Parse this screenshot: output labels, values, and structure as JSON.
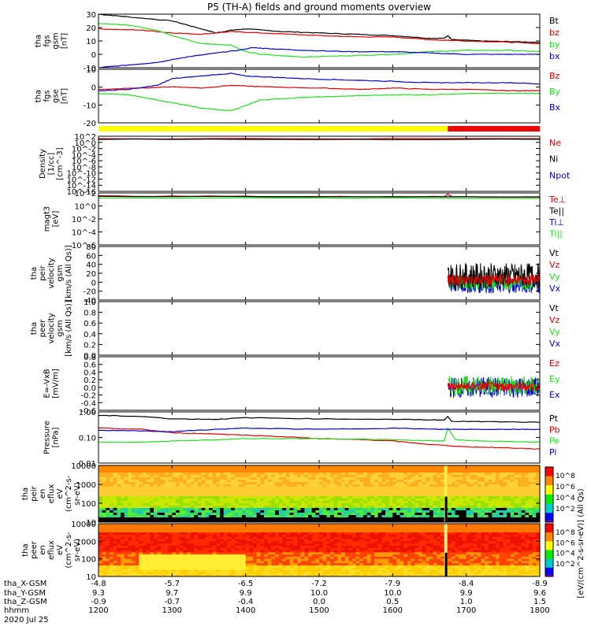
{
  "title": "P5 (TH-A) fields and ground moments overview",
  "colors": {
    "black": "#000000",
    "red": "#e00000",
    "green": "#22dd22",
    "blue": "#0000cc",
    "yellow": "#ffff00",
    "barred": "#ee0000"
  },
  "chart_data": {
    "type": "line",
    "time_axis": {
      "rows": [
        {
          "label": "tha_X-GSM",
          "values": [
            "-4.8",
            "-5.7",
            "-6.5",
            "-7.2",
            "-7.9",
            "-8.4",
            "-8.9"
          ]
        },
        {
          "label": "tha_Y-GSM",
          "values": [
            "9.3",
            "9.7",
            "9.9",
            "10.0",
            "10.0",
            "9.9",
            "9.6"
          ]
        },
        {
          "label": "tha_Z-GSM",
          "values": [
            "-0.9",
            "-0.7",
            "-0.4",
            "0.0",
            "0.5",
            "1.0",
            "1.5"
          ]
        },
        {
          "label": "hhmm",
          "values": [
            "1200",
            "1300",
            "1400",
            "1500",
            "1600",
            "1700",
            "1800"
          ]
        }
      ],
      "date": "2020 Jul 25",
      "range": [
        1200,
        1800
      ]
    },
    "panels": [
      {
        "id": "fgs",
        "ylabel": [
          "tha",
          "fgs",
          "gsm",
          "[nT]"
        ],
        "yticks": [
          "30",
          "20",
          "10",
          "0",
          "-10"
        ],
        "ylim": [
          -10,
          30
        ],
        "legend": [
          {
            "name": "Bt",
            "color": "black"
          },
          {
            "name": "bz",
            "color": "red"
          },
          {
            "name": "by",
            "color": "green"
          },
          {
            "name": "bx",
            "color": "blue"
          }
        ],
        "series": [
          {
            "name": "Bt",
            "color": "black",
            "t": [
              1200,
              1240,
              1300,
              1340,
              1360,
              1380,
              1400,
              1450,
              1500,
              1550,
              1600,
              1650,
              1670,
              1675,
              1680,
              1720,
              1760,
              1800
            ],
            "y": [
              30,
              28,
              25,
              19,
              16,
              18,
              19,
              17,
              16,
              15,
              14,
              12,
              12,
              14,
              11,
              10,
              9.5,
              9
            ]
          },
          {
            "name": "bz",
            "color": "red",
            "t": [
              1200,
              1260,
              1300,
              1340,
              1380,
              1420,
              1500,
              1560,
              1600,
              1650,
              1700,
              1760,
              1800
            ],
            "y": [
              19,
              18,
              16,
              15,
              17,
              16,
              14,
              13,
              13,
              11,
              10,
              9,
              8
            ]
          },
          {
            "name": "by",
            "color": "green",
            "t": [
              1200,
              1240,
              1280,
              1300,
              1340,
              1380,
              1400,
              1420,
              1480,
              1540,
              1600,
              1650,
              1700,
              1760,
              1800
            ],
            "y": [
              23,
              22,
              18,
              14,
              8,
              7,
              2,
              0,
              -2,
              -1,
              0,
              2,
              3,
              3,
              2
            ]
          },
          {
            "name": "bx",
            "color": "blue",
            "t": [
              1200,
              1240,
              1280,
              1300,
              1320,
              1360,
              1390,
              1410,
              1440,
              1480,
              1540,
              1600,
              1650,
              1700,
              1760,
              1800
            ],
            "y": [
              -10,
              -8,
              -6,
              -4,
              -2,
              1,
              3,
              5,
              4,
              3,
              2,
              2,
              1,
              0,
              0,
              0
            ]
          }
        ]
      },
      {
        "id": "fgsgse",
        "ylabel": [
          "tha",
          "fgs",
          "gse",
          "[nT]"
        ],
        "yticks": [
          "10",
          "0",
          "-10",
          "-20"
        ],
        "ylim": [
          -25,
          15
        ],
        "legend": [
          {
            "name": "Bz",
            "color": "red"
          },
          {
            "name": "By",
            "color": "green"
          },
          {
            "name": "Bx",
            "color": "blue"
          }
        ],
        "series": [
          {
            "name": "Bz",
            "color": "red",
            "t": [
              1200,
              1260,
              1300,
              1340,
              1380,
              1420,
              1500,
              1560,
              1600,
              1650,
              1700,
              1760,
              1800
            ],
            "y": [
              0,
              1,
              2,
              1,
              3,
              2,
              1,
              0,
              1,
              0,
              0,
              -1,
              -1
            ]
          },
          {
            "name": "By",
            "color": "green",
            "t": [
              1200,
              1240,
              1280,
              1300,
              1340,
              1380,
              1400,
              1420,
              1480,
              1540,
              1600,
              1650,
              1700,
              1760,
              1800
            ],
            "y": [
              -3,
              -4,
              -8,
              -10,
              -14,
              -16,
              -12,
              -8,
              -6,
              -5,
              -4,
              -4,
              -3,
              -3,
              -3
            ]
          },
          {
            "name": "Bx",
            "color": "blue",
            "t": [
              1200,
              1240,
              1280,
              1300,
              1340,
              1380,
              1400,
              1440,
              1480,
              1540,
              1600,
              1650,
              1700,
              1760,
              1800
            ],
            "y": [
              -1,
              0,
              3,
              8,
              10,
              12,
              10,
              9,
              8,
              7,
              6,
              5,
              5,
              5,
              4
            ]
          }
        ]
      },
      {
        "id": "density",
        "ylabel": [
          "Density",
          "[1/cc]",
          "[cm^-3]"
        ],
        "yticks": [
          "10^2",
          "10^0",
          "10^-2",
          "10^-4",
          "10^-6",
          "10^-8",
          "10^-10",
          "10^-12",
          "10^-14",
          "10^-16"
        ],
        "ylim": [
          -16,
          2
        ],
        "log": true,
        "legend": [
          {
            "name": "Ne",
            "color": "red"
          },
          {
            "name": "Ni",
            "color": "black"
          },
          {
            "name": "Npot",
            "color": "blue"
          }
        ],
        "series": [
          {
            "name": "Ne",
            "color": "red",
            "t": [
              1200,
              1800
            ],
            "y": [
              1.2,
              1.2
            ]
          },
          {
            "name": "Ni",
            "color": "black",
            "t": [
              1200,
              1800
            ],
            "y": [
              1.0,
              1.0
            ]
          }
        ]
      },
      {
        "id": "temp",
        "ylabel": [
          "magt3",
          "[eV]"
        ],
        "yticks": [
          "10^2",
          "10^0",
          "10^-2",
          "10^-4",
          "10^-6"
        ],
        "ylim": [
          -6,
          2.5
        ],
        "log": true,
        "legend": [
          {
            "name": "Te⊥",
            "color": "red"
          },
          {
            "name": "Te||",
            "color": "black"
          },
          {
            "name": "Ti⊥",
            "color": "blue"
          },
          {
            "name": "Ti||",
            "color": "green"
          }
        ],
        "series": [
          {
            "name": "Te⊥",
            "color": "red",
            "t": [
              1200,
              1500,
              1670,
              1675,
              1680,
              1800
            ],
            "y": [
              2.0,
              1.9,
              1.9,
              2.3,
              1.9,
              1.8
            ]
          },
          {
            "name": "Ti||",
            "color": "green",
            "t": [
              1200,
              1800
            ],
            "y": [
              1.7,
              1.6
            ]
          },
          {
            "name": "Te||",
            "color": "black",
            "t": [
              1200,
              1800
            ],
            "y": [
              1.95,
              1.85
            ]
          }
        ]
      },
      {
        "id": "peir_vel",
        "ylabel": [
          "tha",
          "peir",
          "velocity",
          "gsm",
          "[km/s (All Qs)]"
        ],
        "yticks": [
          "80",
          "60",
          "40",
          "20",
          "0",
          "-20",
          "-40"
        ],
        "ylim": [
          -40,
          80
        ],
        "legend": [
          {
            "name": "Vt",
            "color": "black"
          },
          {
            "name": "Vz",
            "color": "red"
          },
          {
            "name": "Vy",
            "color": "green"
          },
          {
            "name": "Vx",
            "color": "blue"
          }
        ],
        "noisy": {
          "start": 1675,
          "end": 1800,
          "bands": [
            {
              "color": "blue",
              "center": -5,
              "amp": 20
            },
            {
              "color": "green",
              "center": 0,
              "amp": 18
            },
            {
              "color": "black",
              "center": 15,
              "amp": 28
            },
            {
              "color": "red",
              "center": 5,
              "amp": 12
            }
          ]
        }
      },
      {
        "id": "peer_vel",
        "ylabel": [
          "tha",
          "peer",
          "velocity",
          "gsm",
          "[km/s (All Qs)]"
        ],
        "yticks": [
          "1.0",
          "0.8",
          "0.6",
          "0.4",
          "0.2",
          "0.0"
        ],
        "ylim": [
          0,
          1
        ],
        "legend": [
          {
            "name": "Vt",
            "color": "black"
          },
          {
            "name": "Vz",
            "color": "red"
          },
          {
            "name": "Vy",
            "color": "green"
          },
          {
            "name": "Vx",
            "color": "blue"
          }
        ]
      },
      {
        "id": "efield",
        "ylabel": [
          "E=-VxB",
          "[mV/m]"
        ],
        "yticks": [
          "0.8",
          "0.6",
          "0.4",
          "0.2",
          "0.0",
          "-0.2",
          "-0.4",
          "-0.6"
        ],
        "ylim": [
          -0.6,
          0.8
        ],
        "legend": [
          {
            "name": "Ez",
            "color": "red"
          },
          {
            "name": "Ey",
            "color": "green"
          },
          {
            "name": "Ex",
            "color": "blue"
          }
        ],
        "noisy": {
          "start": 1675,
          "end": 1800,
          "bands": [
            {
              "color": "blue",
              "center": 0,
              "amp": 0.28
            },
            {
              "color": "green",
              "center": 0.05,
              "amp": 0.25
            },
            {
              "color": "red",
              "center": 0.02,
              "amp": 0.12
            }
          ]
        }
      },
      {
        "id": "pressure",
        "ylabel": [
          "Pressure",
          "[nPa]"
        ],
        "yticks": [
          "1.00",
          "0.10",
          "0.01"
        ],
        "ylim": [
          -2,
          0.2
        ],
        "log": true,
        "legend": [
          {
            "name": "Pt",
            "color": "black"
          },
          {
            "name": "Pb",
            "color": "red"
          },
          {
            "name": "Pe",
            "color": "green"
          },
          {
            "name": "Pi",
            "color": "blue"
          }
        ],
        "series": [
          {
            "name": "Pt",
            "color": "black",
            "t": [
              1200,
              1260,
              1300,
              1360,
              1400,
              1500,
              1600,
              1660,
              1670,
              1675,
              1680,
              1720,
              1800
            ],
            "y": [
              0.05,
              0,
              -0.1,
              -0.12,
              -0.05,
              -0.1,
              -0.12,
              -0.15,
              -0.15,
              0.0,
              -0.2,
              -0.22,
              -0.25
            ]
          },
          {
            "name": "Pb",
            "color": "red",
            "t": [
              1200,
              1260,
              1300,
              1360,
              1400,
              1440,
              1500,
              1560,
              1600,
              1650,
              1700,
              1760,
              1800
            ],
            "y": [
              -0.5,
              -0.55,
              -0.7,
              -0.75,
              -0.8,
              -0.85,
              -0.95,
              -1.0,
              -1.05,
              -1.2,
              -1.3,
              -1.35,
              -1.4
            ]
          },
          {
            "name": "Pe",
            "color": "green",
            "t": [
              1200,
              1260,
              1300,
              1360,
              1400,
              1500,
              1600,
              1660,
              1670,
              1675,
              1685,
              1720,
              1800
            ],
            "y": [
              -1.1,
              -1.1,
              -1.05,
              -1.0,
              -0.95,
              -0.95,
              -1.0,
              -1.05,
              -1.05,
              -0.5,
              -1.0,
              -1.05,
              -1.1
            ]
          },
          {
            "name": "Pi",
            "color": "blue",
            "t": [
              1200,
              1260,
              1300,
              1360,
              1400,
              1500,
              1600,
              1660,
              1700,
              1760,
              1800
            ],
            "y": [
              -0.6,
              -0.62,
              -0.65,
              -0.55,
              -0.5,
              -0.55,
              -0.5,
              -0.55,
              -0.55,
              -0.55,
              -0.55
            ]
          }
        ]
      },
      {
        "id": "peir_spec",
        "ylabel": [
          "tha",
          "peir",
          "en",
          "eflux",
          "eV",
          "(cm^2-s-",
          "sr-eV)"
        ],
        "yticks": [
          "10000",
          "1000",
          "100",
          "10"
        ],
        "ylim": [
          0.7,
          4.3
        ],
        "log": true,
        "type": "heatmap"
      },
      {
        "id": "peer_spec",
        "ylabel": [
          "tha",
          "peer",
          "en",
          "eflux",
          "eV",
          "(cm^2-s-",
          "sr-eV)"
        ],
        "yticks": [
          "10000",
          "1000",
          "100",
          "10"
        ],
        "ylim": [
          0.7,
          4.3
        ],
        "log": true,
        "type": "heatmap"
      }
    ],
    "colorbar": {
      "label": "[eV/(cm^2-s-sr-eV)] (All Qs)",
      "ticks": [
        "10^8",
        "10^6",
        "10^4",
        "10^2",
        "10^8",
        "10^6",
        "10^4",
        "10^2"
      ]
    }
  }
}
